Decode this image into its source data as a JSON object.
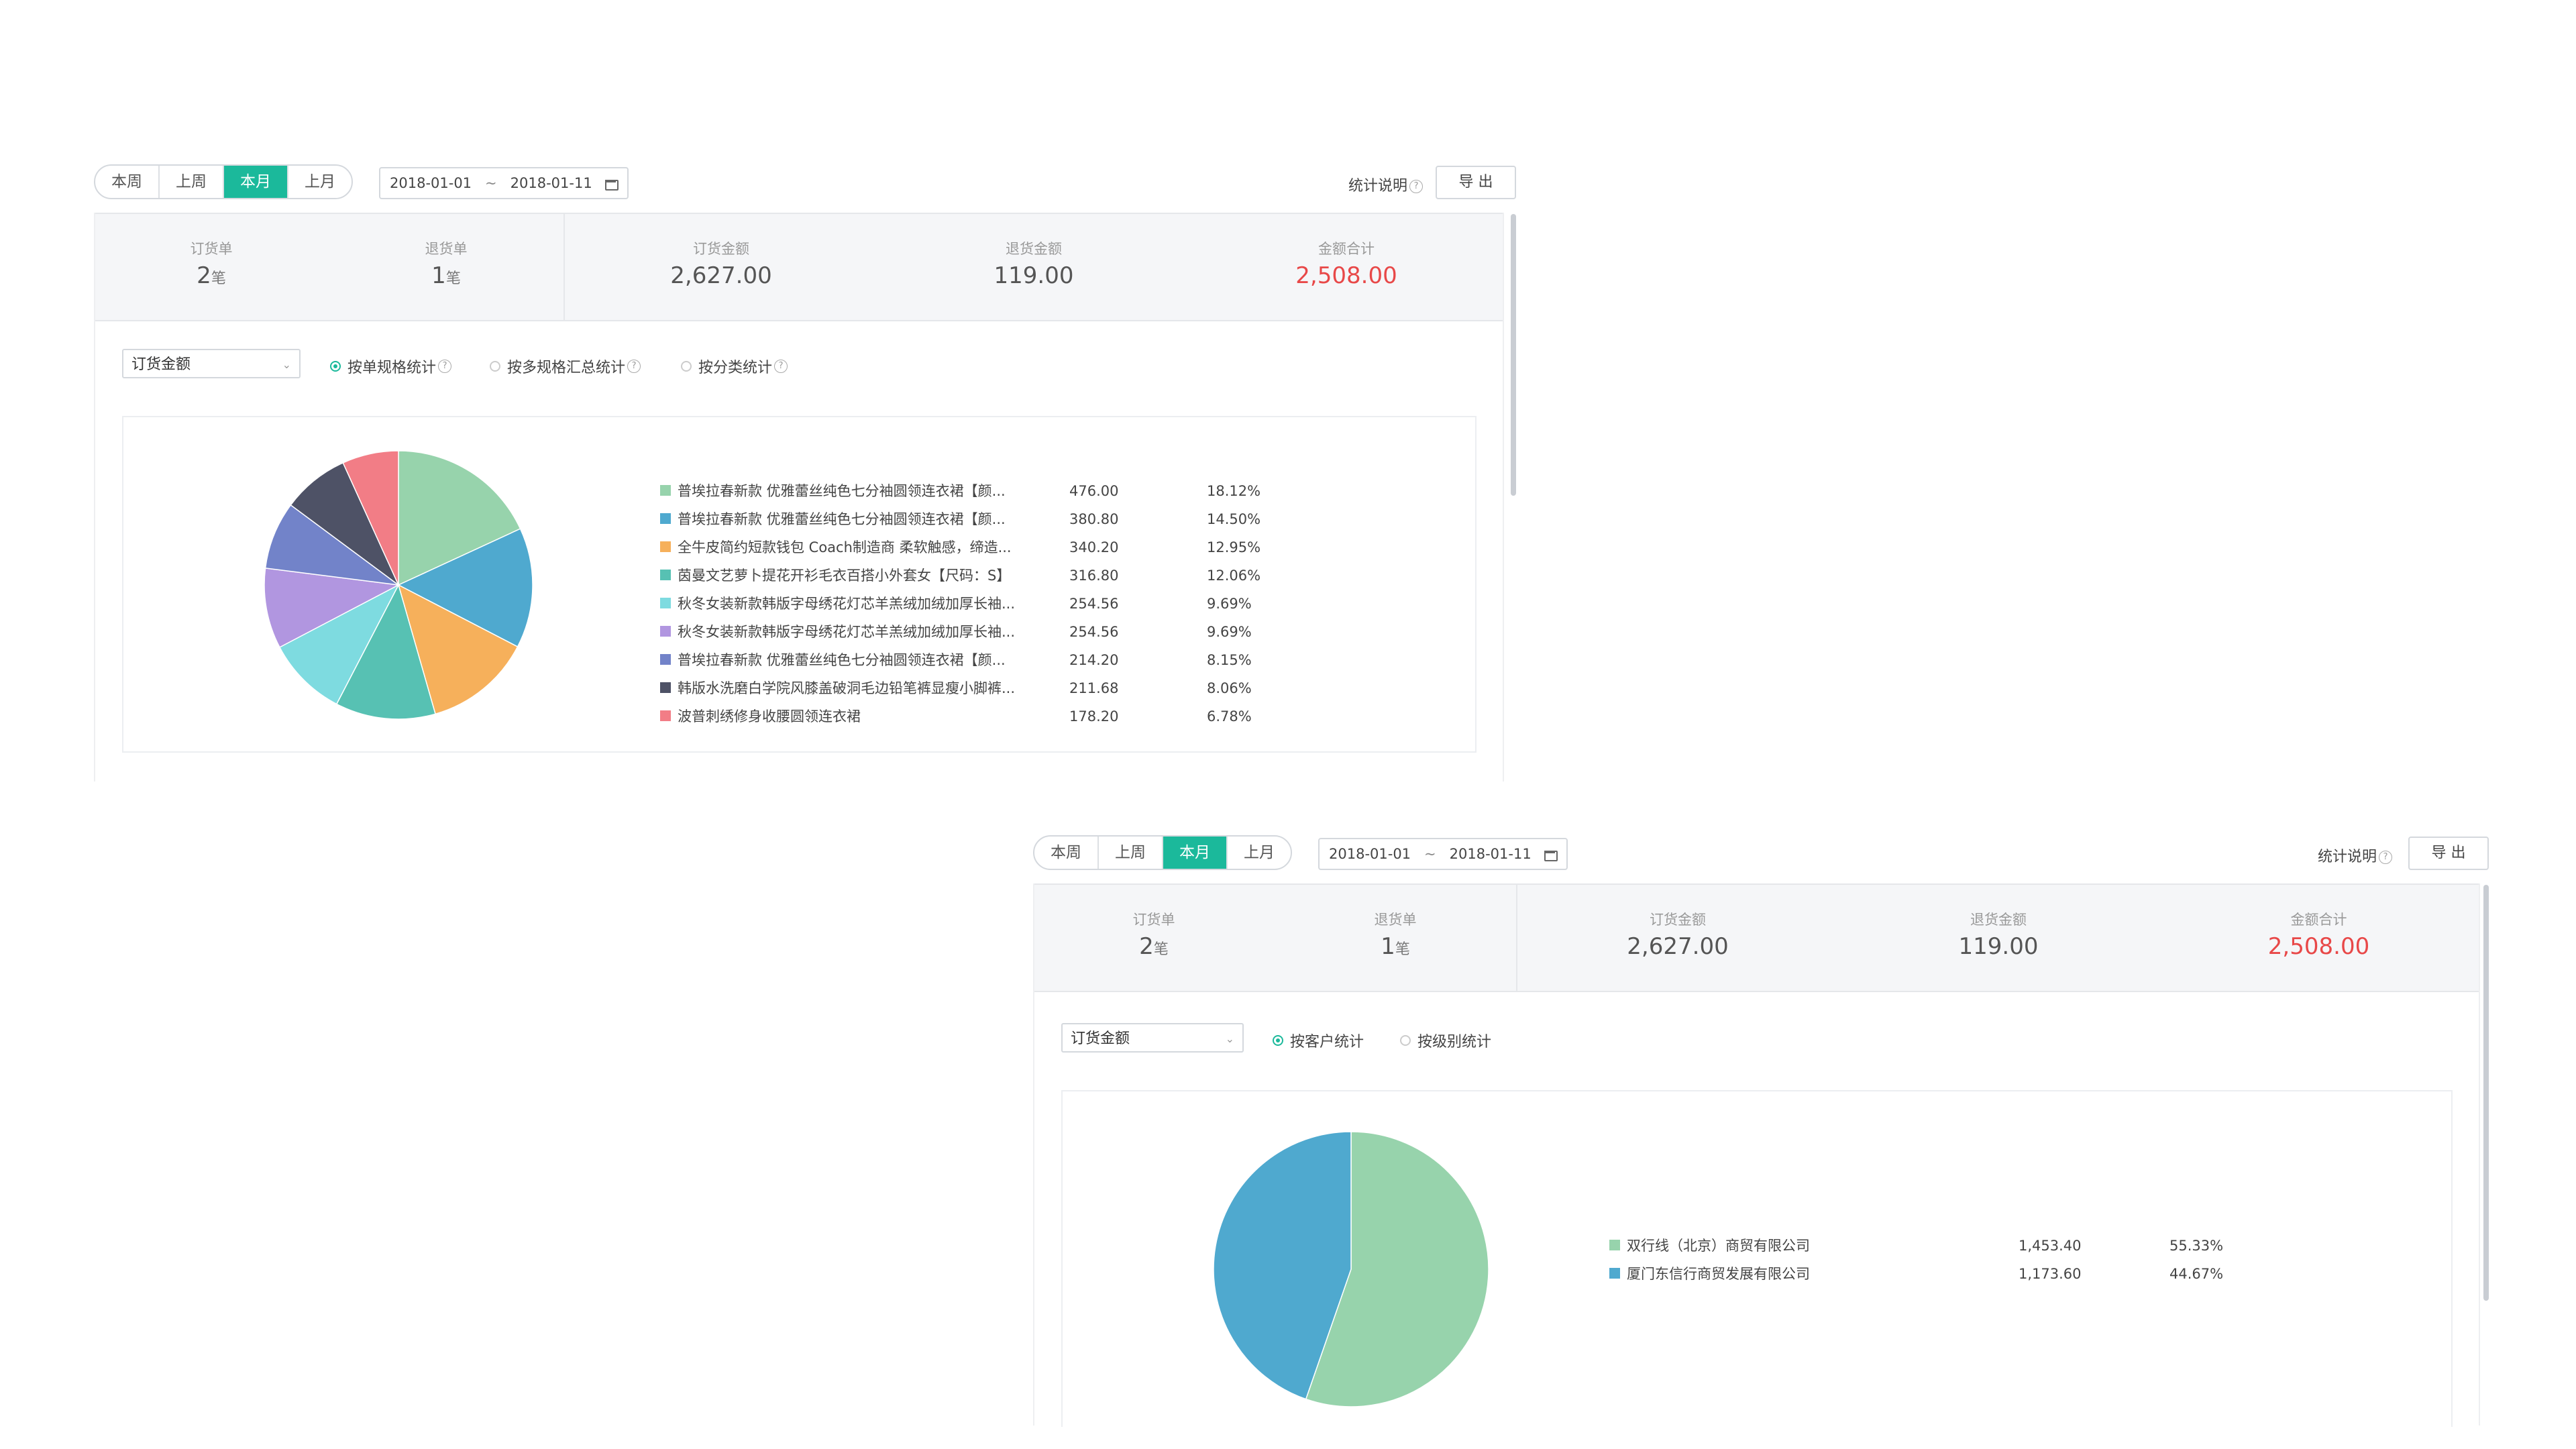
{
  "panel1": {
    "periods": [
      "本周",
      "上周",
      "本月",
      "上月"
    ],
    "active_period": "本月",
    "date_start": "2018-01-01",
    "date_sep": "~",
    "date_end": "2018-01-11",
    "explain_label": "统计说明",
    "explain_icon": "?",
    "export_label": "导 出",
    "stats": [
      {
        "label": "订货单",
        "value": "2",
        "unit": "笔"
      },
      {
        "label": "退货单",
        "value": "1",
        "unit": "笔"
      },
      {
        "label": "订货金额",
        "value": "2,627.00"
      },
      {
        "label": "退货金额",
        "value": "119.00"
      },
      {
        "label": "金额合计",
        "value": "2,508.00"
      }
    ],
    "metric_select": "订货金额",
    "radios": [
      {
        "label": "按单规格统计",
        "checked": true,
        "help": "?"
      },
      {
        "label": "按多规格汇总统计",
        "checked": false,
        "help": "?"
      },
      {
        "label": "按分类统计",
        "checked": false,
        "help": "?"
      }
    ]
  },
  "panel2": {
    "periods": [
      "本周",
      "上周",
      "本月",
      "上月"
    ],
    "active_period": "本月",
    "date_start": "2018-01-01",
    "date_sep": "~",
    "date_end": "2018-01-11",
    "explain_label": "统计说明",
    "explain_icon": "?",
    "export_label": "导 出",
    "stats": [
      {
        "label": "订货单",
        "value": "2",
        "unit": "笔"
      },
      {
        "label": "退货单",
        "value": "1",
        "unit": "笔"
      },
      {
        "label": "订货金额",
        "value": "2,627.00"
      },
      {
        "label": "退货金额",
        "value": "119.00"
      },
      {
        "label": "金额合计",
        "value": "2,508.00"
      }
    ],
    "metric_select": "订货金额",
    "radios": [
      {
        "label": "按客户统计",
        "checked": true
      },
      {
        "label": "按级别统计",
        "checked": false
      }
    ]
  },
  "colors": {
    "accent": "#1bb99b",
    "total_red": "#e84848"
  },
  "chart_data": [
    {
      "type": "pie",
      "slices": [
        {
          "name": "普埃拉春新款 优雅蕾丝纯色七分袖圆领连衣裙【颜...",
          "value": 476.0,
          "pct": "18.12%",
          "color": "#97d3ac"
        },
        {
          "name": "普埃拉春新款 优雅蕾丝纯色七分袖圆领连衣裙【颜...",
          "value": 380.8,
          "pct": "14.50%",
          "color": "#4fa9cf"
        },
        {
          "name": "全牛皮简约短款钱包 Coach制造商 柔软触感，缔造...",
          "value": 340.2,
          "pct": "12.95%",
          "color": "#f6b05b"
        },
        {
          "name": "茵曼文艺萝卜提花开衫毛衣百搭小外套女【尺码：S】",
          "value": 316.8,
          "pct": "12.06%",
          "color": "#57c1b3"
        },
        {
          "name": "秋冬女装新款韩版字母绣花灯芯羊羔绒加绒加厚长袖...",
          "value": 254.56,
          "pct": "9.69%",
          "color": "#7edbe0"
        },
        {
          "name": "秋冬女装新款韩版字母绣花灯芯羊羔绒加绒加厚长袖...",
          "value": 254.56,
          "pct": "9.69%",
          "color": "#b196e0"
        },
        {
          "name": "普埃拉春新款 优雅蕾丝纯色七分袖圆领连衣裙【颜...",
          "value": 214.2,
          "pct": "8.15%",
          "color": "#7283c9"
        },
        {
          "name": "韩版水洗磨白学院风膝盖破洞毛边铅笔裤显瘦小脚裤...",
          "value": 211.68,
          "pct": "8.06%",
          "color": "#4e5266"
        },
        {
          "name": "波普刺绣修身收腰圆领连衣裙",
          "value": 178.2,
          "pct": "6.78%",
          "color": "#f27d86"
        }
      ]
    },
    {
      "type": "pie",
      "slices": [
        {
          "name": "双行线（北京）商贸有限公司",
          "value": 1453.4,
          "value_text": "1,453.40",
          "pct": "55.33%",
          "color": "#97d3ac"
        },
        {
          "name": "厦门东信行商贸发展有限公司",
          "value": 1173.6,
          "value_text": "1,173.60",
          "pct": "44.67%",
          "color": "#4fa9cf"
        }
      ]
    }
  ]
}
